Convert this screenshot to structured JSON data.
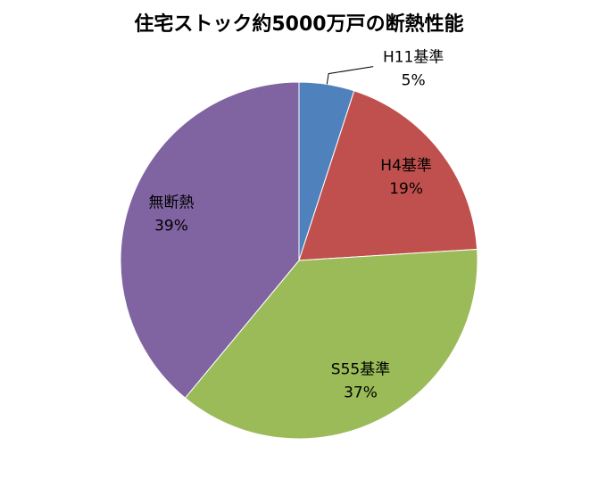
{
  "chart_data": {
    "type": "pie",
    "title": "住宅ストック約5000万戸の断熱性能",
    "categories": [
      "H11基準",
      "H4基準",
      "S55基準",
      "無断熱"
    ],
    "values": [
      5,
      19,
      37,
      39
    ],
    "value_labels": [
      "5%",
      "19%",
      "37%",
      "39%"
    ],
    "colors": [
      "#4f81bd",
      "#c0504d",
      "#9bbb59",
      "#8064a2"
    ]
  }
}
